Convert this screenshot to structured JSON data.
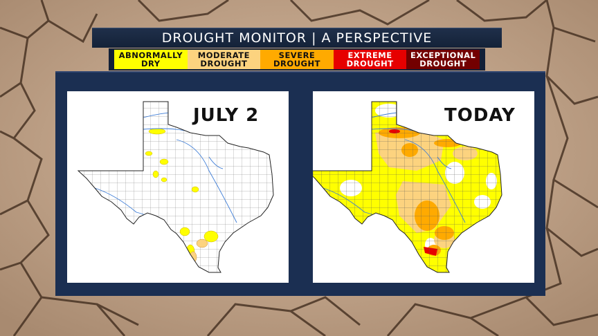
{
  "title": "DROUGHT MONITOR  |  A PERSPECTIVE",
  "legend": [
    {
      "label": "ABNORMALLY\nDRY",
      "color": "#ffff00",
      "text_color": "#111111"
    },
    {
      "label": "MODERATE\nDROUGHT",
      "color": "#fcd37f",
      "text_color": "#111111"
    },
    {
      "label": "SEVERE\nDROUGHT",
      "color": "#ffaa00",
      "text_color": "#111111"
    },
    {
      "label": "EXTREME\nDROUGHT",
      "color": "#e60000",
      "text_color": "#ffffff"
    },
    {
      "label": "EXCEPTIONAL\nDROUGHT",
      "color": "#730000",
      "text_color": "#ffffff"
    }
  ],
  "maps": {
    "left": {
      "label": "JULY 2"
    },
    "right": {
      "label": "TODAY"
    }
  }
}
